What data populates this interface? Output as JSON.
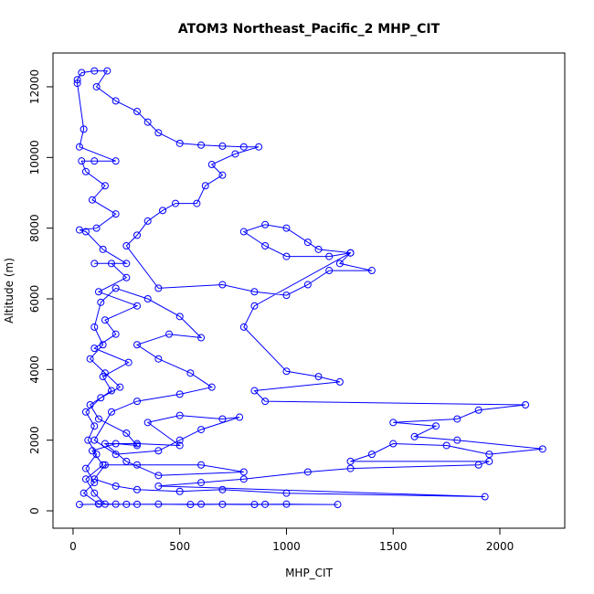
{
  "chart_data": {
    "type": "scatter",
    "lines": true,
    "color": "#0000ff",
    "title": "ATOM3 Northeast_Pacific_2 MHP_CIT",
    "xlabel": "MHP_CIT",
    "ylabel": "Altitude (m)",
    "xlim": [
      -94,
      2304
    ],
    "ylim": [
      -491,
      12956
    ],
    "xticks": [
      0,
      500,
      1000,
      1500,
      2000
    ],
    "yticks": [
      0,
      2000,
      4000,
      6000,
      8000,
      10000,
      12000
    ],
    "x": [
      30,
      120,
      250,
      400,
      550,
      700,
      850,
      1000,
      1240,
      900,
      600,
      300,
      150,
      100,
      60,
      140,
      90,
      200,
      300,
      250,
      120,
      80,
      180,
      140,
      260,
      100,
      200,
      150,
      300,
      120,
      250,
      180,
      100,
      250,
      140,
      60,
      30,
      110,
      200,
      90,
      150,
      60,
      40,
      100,
      200,
      30,
      50,
      20,
      20,
      40,
      100,
      160,
      110,
      200,
      300,
      350,
      400,
      500,
      600,
      700,
      800,
      870,
      760,
      650,
      700,
      620,
      580,
      480,
      420,
      350,
      300,
      250,
      400,
      700,
      850,
      1000,
      1100,
      1200,
      1400,
      1250,
      1300,
      1150,
      1100,
      1000,
      900,
      800,
      900,
      1000,
      1200,
      1300,
      850,
      800,
      1000,
      1150,
      1250,
      850,
      900,
      2120,
      1900,
      1800,
      1500,
      1700,
      1600,
      1800,
      2200,
      1950,
      1750,
      1500,
      1400,
      1300,
      1950,
      1900,
      1300,
      1100,
      800,
      600,
      400,
      1930,
      1000,
      700,
      500,
      300,
      200,
      100,
      150,
      300,
      600,
      800,
      400,
      250,
      150,
      300,
      500,
      350,
      500,
      700,
      780,
      600,
      500,
      400,
      200,
      100,
      180,
      300,
      500,
      650,
      550,
      400,
      300,
      450,
      600,
      500,
      350,
      200,
      130,
      100,
      140,
      80,
      150,
      220,
      130,
      60,
      100,
      70,
      110,
      60,
      100,
      50,
      120,
      200
    ],
    "y": [
      180,
      190,
      185,
      190,
      180,
      185,
      180,
      190,
      180,
      185,
      190,
      185,
      190,
      500,
      900,
      1300,
      1700,
      1900,
      1850,
      2200,
      2600,
      3000,
      3400,
      3800,
      4200,
      4600,
      5000,
      5400,
      5800,
      6200,
      6600,
      7000,
      7000,
      7000,
      7400,
      7900,
      7950,
      8000,
      8400,
      8800,
      9200,
      9600,
      9900,
      9900,
      9900,
      10300,
      10800,
      12100,
      12200,
      12400,
      12450,
      12450,
      12000,
      11600,
      11300,
      11000,
      10700,
      10400,
      10350,
      10320,
      10300,
      10300,
      10100,
      9800,
      9500,
      9200,
      8700,
      8700,
      8500,
      8200,
      7800,
      7500,
      6300,
      6400,
      6200,
      6100,
      6400,
      6800,
      6800,
      7000,
      7300,
      7400,
      7600,
      8000,
      8100,
      7900,
      7500,
      7200,
      7200,
      7300,
      5800,
      5200,
      3950,
      3800,
      3650,
      3400,
      3100,
      3000,
      2850,
      2600,
      2500,
      2400,
      2100,
      2000,
      1750,
      1600,
      1850,
      1900,
      1600,
      1400,
      1400,
      1300,
      1200,
      1100,
      900,
      800,
      700,
      400,
      500,
      600,
      550,
      600,
      700,
      900,
      1300,
      1300,
      1300,
      1100,
      1000,
      1400,
      1900,
      1900,
      1850,
      2500,
      2700,
      2600,
      2650,
      2300,
      2000,
      1700,
      1600,
      2000,
      2800,
      3100,
      3300,
      3500,
      3900,
      4300,
      4700,
      5000,
      4900,
      5500,
      6000,
      6300,
      5900,
      5200,
      4700,
      4300,
      3900,
      3500,
      3200,
      2800,
      2400,
      2000,
      1600,
      1200,
      800,
      500,
      200,
      190
    ]
  }
}
